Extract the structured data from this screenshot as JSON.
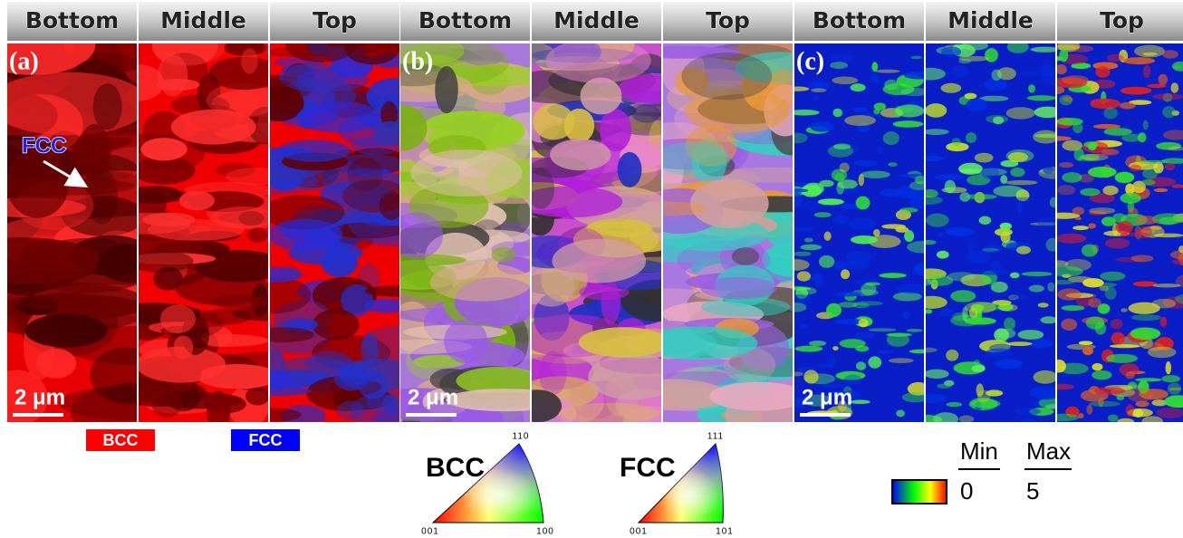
{
  "panels": [
    {
      "label": "(a)",
      "columns": [
        "Bottom",
        "Middle",
        "Top"
      ],
      "scale_bar": "2 μm",
      "annotation": "FCC"
    },
    {
      "label": "(b)",
      "columns": [
        "Bottom",
        "Middle",
        "Top"
      ],
      "scale_bar": "2 μm"
    },
    {
      "label": "(c)",
      "columns": [
        "Bottom",
        "Middle",
        "Top"
      ],
      "scale_bar": "2 μm"
    }
  ],
  "phase_legend": [
    "BCC",
    "FCC"
  ],
  "ipf": [
    {
      "phase": "BCC",
      "corners": [
        "001",
        "100",
        "110"
      ]
    },
    {
      "phase": "FCC",
      "corners": [
        "001",
        "101",
        "111"
      ]
    }
  ],
  "kam_scale": {
    "min_label": "Min",
    "max_label": "Max",
    "min": 0,
    "max": 5
  }
}
